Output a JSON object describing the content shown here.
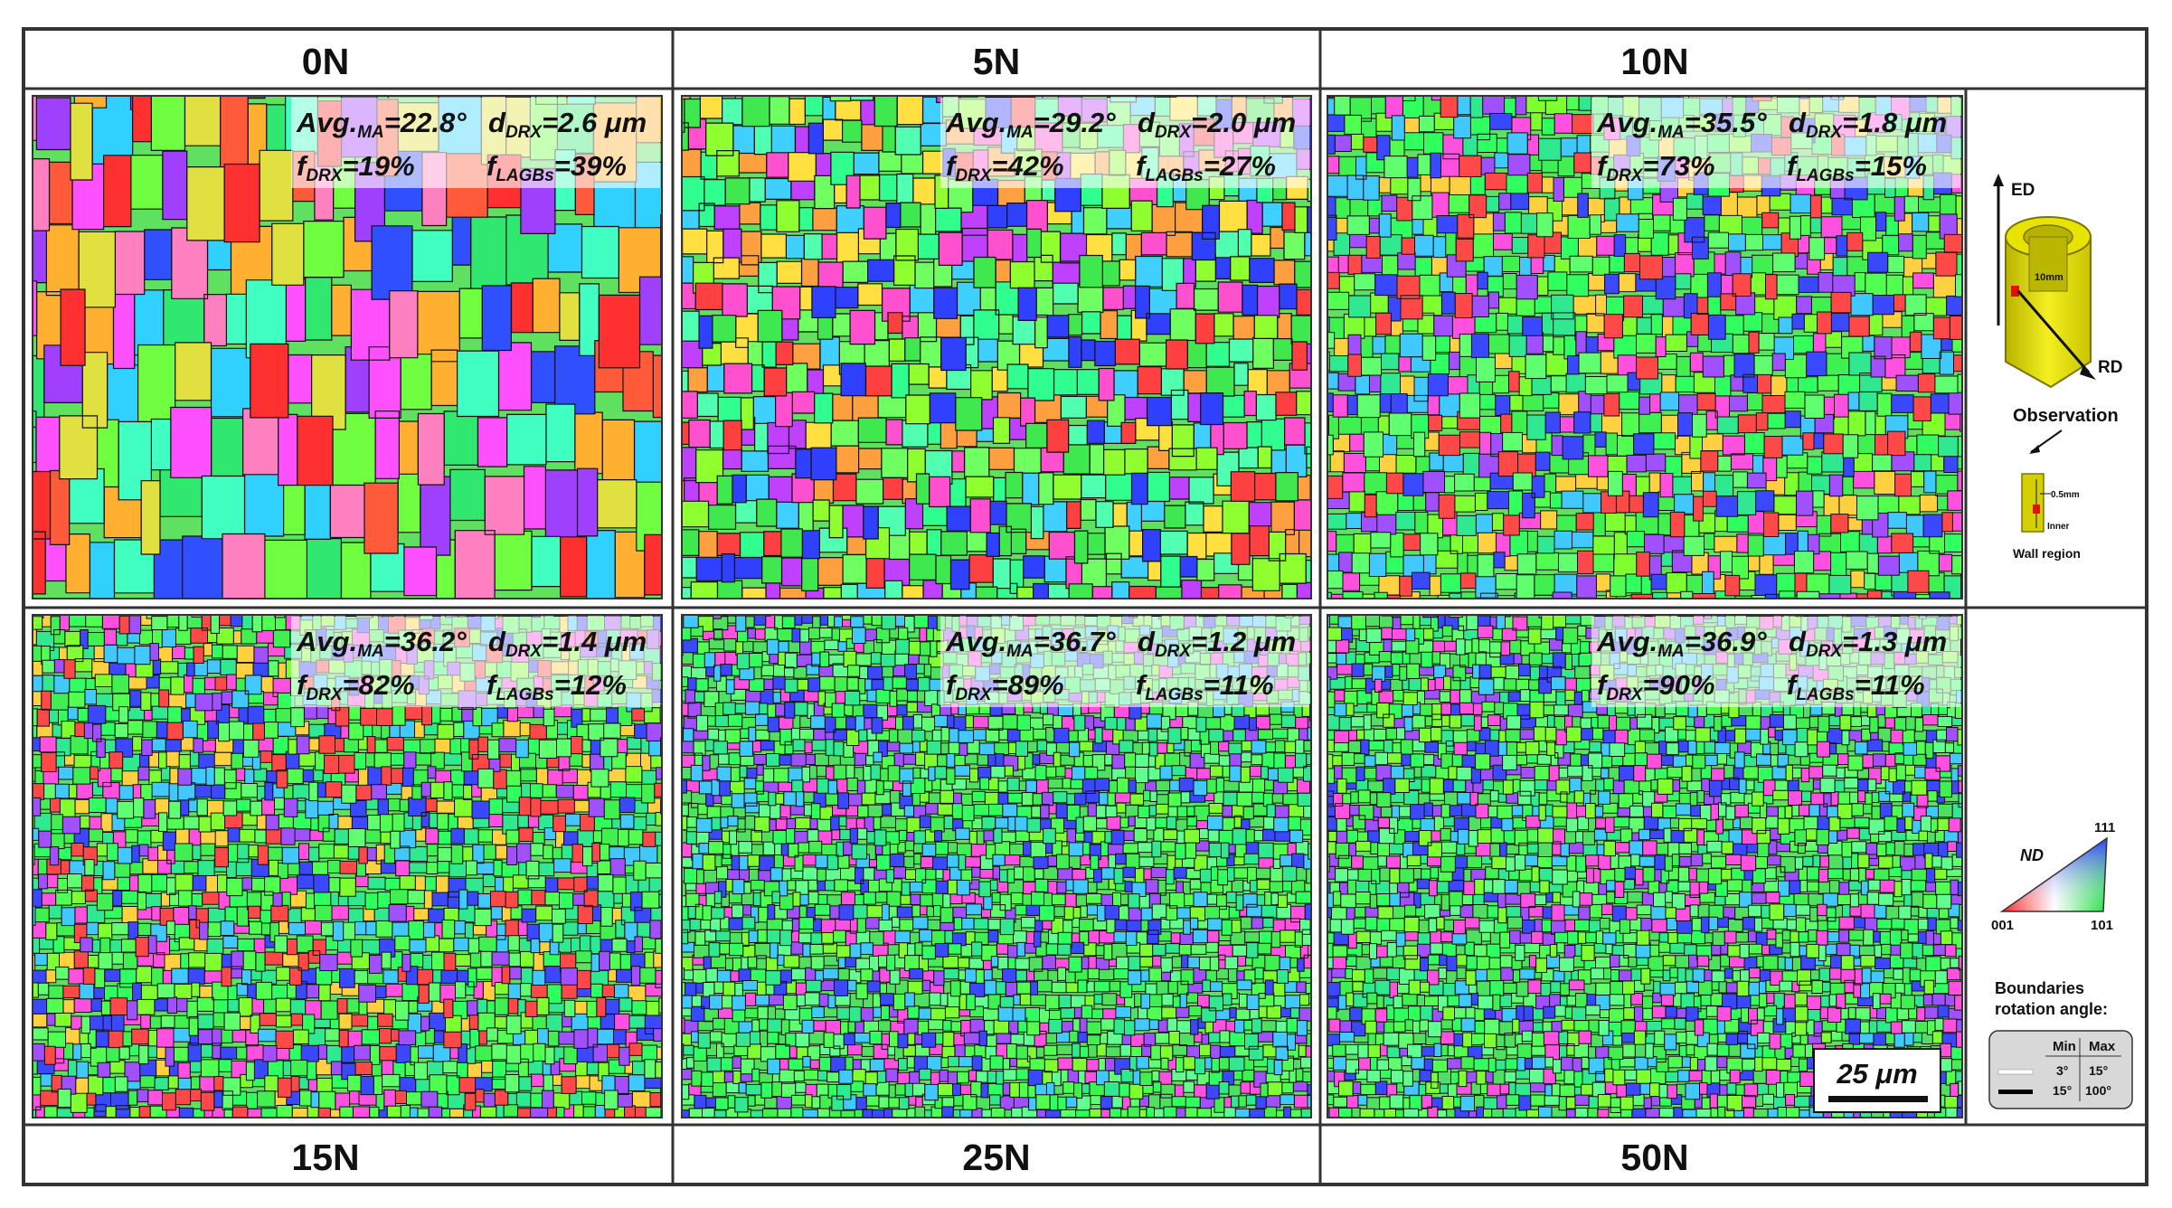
{
  "column_headers": [
    "0N",
    "5N",
    "10N"
  ],
  "row_footers": [
    "15N",
    "25N",
    "50N"
  ],
  "panels": [
    {
      "load": "0N",
      "avg_ma": "=22.8°",
      "d_drx": "=2.6 μm",
      "f_drx": "=19%",
      "f_lagbs": "=39%"
    },
    {
      "load": "5N",
      "avg_ma": "=29.2°",
      "d_drx": "=2.0 μm",
      "f_drx": "=42%",
      "f_lagbs": "=27%"
    },
    {
      "load": "10N",
      "avg_ma": "=35.5°",
      "d_drx": "=1.8 μm",
      "f_drx": "=73%",
      "f_lagbs": "=15%"
    },
    {
      "load": "15N",
      "avg_ma": "=36.2°",
      "d_drx": "=1.4 μm",
      "f_drx": "=82%",
      "f_lagbs": "=12%"
    },
    {
      "load": "25N",
      "avg_ma": "=36.7°",
      "d_drx": "=1.2 μm",
      "f_drx": "=89%",
      "f_lagbs": "=11%"
    },
    {
      "load": "50N",
      "avg_ma": "=36.9°",
      "d_drx": "=1.3 μm",
      "f_drx": "=90%",
      "f_lagbs": "=11%"
    }
  ],
  "label_symbols": {
    "avg": "Avg.",
    "avg_sub": "MA",
    "d": "d",
    "d_sub": "DRX",
    "f": "f",
    "f_sub": "DRX",
    "fl": "f",
    "fl_sub": "LAGBs"
  },
  "scale_bar": {
    "text": "25 μm"
  },
  "schematic": {
    "ed": "ED",
    "rd": "RD",
    "dim": "10mm",
    "observation": "Observation",
    "thickness": "0.5mm",
    "inner": "Inner",
    "wall_region": "Wall region"
  },
  "ipf_legend": {
    "nd": "ND",
    "c111": "111",
    "c001": "001",
    "c101": "101"
  },
  "boundaries_legend": {
    "title_line1": "Boundaries",
    "title_line2": "rotation angle:",
    "col_min": "Min",
    "col_max": "Max",
    "rows": [
      {
        "color": "#ffffff",
        "min": "3°",
        "max": "15°"
      },
      {
        "color": "#000000",
        "min": "15°",
        "max": "100°"
      }
    ]
  },
  "colors": {
    "frame": "#333333",
    "ipf_red_001": "#ff2a2a",
    "ipf_green_101": "#2ee64a",
    "ipf_blue_111": "#3a4cff",
    "schematic_yellow": "#e5e000"
  }
}
